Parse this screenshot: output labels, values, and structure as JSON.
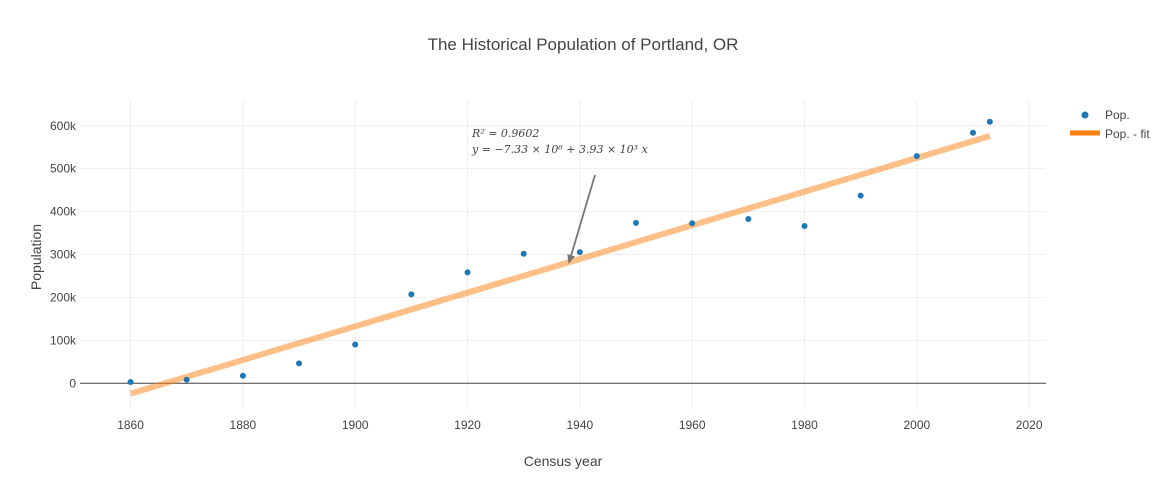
{
  "chart_data": {
    "type": "scatter",
    "title": "The Historical Population of Portland, OR",
    "xlabel": "Census year",
    "ylabel": "Population",
    "xlim": [
      1851,
      2023
    ],
    "ylim": [
      -60000,
      660000
    ],
    "x_ticks": [
      1860,
      1880,
      1900,
      1920,
      1940,
      1960,
      1980,
      2000,
      2020
    ],
    "y_ticks": [
      0,
      100000,
      200000,
      300000,
      400000,
      500000,
      600000
    ],
    "y_tick_labels": [
      "0",
      "100k",
      "200k",
      "300k",
      "400k",
      "500k",
      "600k"
    ],
    "grid": true,
    "legend_position": "top-right",
    "series": [
      {
        "name": "Pop.",
        "kind": "markers",
        "color": "#1f77b4",
        "x": [
          1860,
          1870,
          1880,
          1890,
          1900,
          1910,
          1920,
          1930,
          1940,
          1950,
          1960,
          1970,
          1980,
          1990,
          2000,
          2010,
          2013
        ],
        "y": [
          2874,
          8293,
          17577,
          46385,
          90426,
          207214,
          258288,
          301815,
          305394,
          373628,
          372676,
          382619,
          366383,
          437319,
          529121,
          583776,
          609456
        ]
      },
      {
        "name": "Pop. - fit",
        "kind": "line",
        "color": "#ff7f0e",
        "x": [
          1860,
          2013
        ],
        "y": [
          -24200,
          576000
        ]
      }
    ],
    "annotation": {
      "line1": "R² = 0.9602",
      "line2": "y = −7.33 × 10⁶ + 3.93 × 10³ x",
      "arrow_target": {
        "x": 1938,
        "y": 278000
      }
    }
  }
}
